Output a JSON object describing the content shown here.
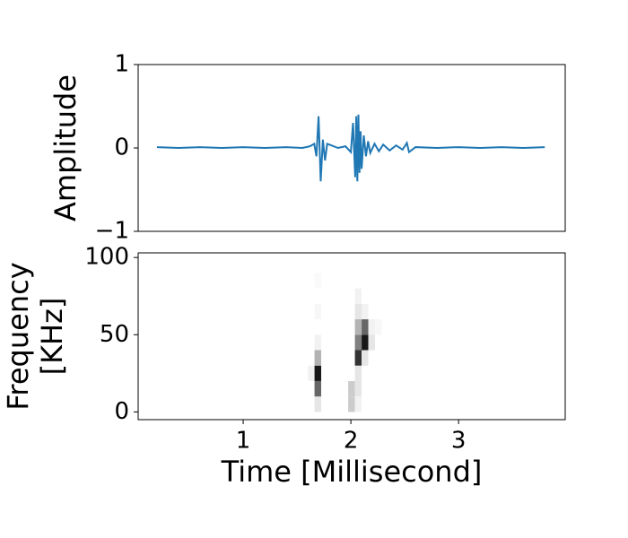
{
  "chart_data": [
    {
      "type": "line",
      "ylabel": "Amplitude",
      "color": "#1f77b4",
      "xlim": [
        0.025,
        3.99
      ],
      "ylim": [
        -1,
        1
      ],
      "yticks": [
        {
          "value": -1,
          "label": "−1"
        },
        0,
        1
      ],
      "x": [
        0.2,
        0.4,
        0.6,
        0.8,
        1.0,
        1.2,
        1.4,
        1.55,
        1.62,
        1.66,
        1.68,
        1.7,
        1.72,
        1.74,
        1.76,
        1.78,
        1.82,
        1.88,
        1.95,
        2.0,
        2.02,
        2.04,
        2.05,
        2.06,
        2.07,
        2.08,
        2.09,
        2.1,
        2.12,
        2.14,
        2.16,
        2.18,
        2.22,
        2.26,
        2.3,
        2.36,
        2.42,
        2.48,
        2.52,
        2.54,
        2.6,
        2.8,
        3.0,
        3.2,
        3.4,
        3.6,
        3.8
      ],
      "values": [
        0.01,
        0.0,
        0.01,
        0.0,
        0.01,
        0.0,
        0.01,
        0.0,
        0.02,
        0.05,
        -0.1,
        0.38,
        -0.4,
        0.1,
        -0.15,
        0.05,
        0.03,
        0.0,
        0.02,
        -0.05,
        0.3,
        -0.35,
        0.38,
        -0.4,
        0.4,
        -0.3,
        0.2,
        -0.25,
        0.15,
        -0.1,
        0.08,
        -0.06,
        0.05,
        -0.04,
        0.04,
        -0.03,
        0.03,
        -0.02,
        0.06,
        -0.05,
        0.01,
        0.0,
        0.01,
        0.0,
        0.01,
        0.0,
        0.01
      ]
    },
    {
      "type": "heatmap",
      "xlabel": "Time [Millisecond]",
      "ylabel": [
        "Frequency",
        "[KHz]"
      ],
      "colormap": "Greys",
      "xlim": [
        0.025,
        3.99
      ],
      "ylim": [
        -5,
        103
      ],
      "xticks": [
        1,
        2,
        3
      ],
      "yticks": [
        0,
        50,
        100
      ],
      "x_bins": [
        1.6,
        1.6625,
        1.725,
        1.7875,
        1.85,
        1.9125,
        1.975,
        2.0375,
        2.1,
        2.1625,
        2.225,
        2.2875,
        2.35,
        2.4125,
        2.475,
        2.5375,
        2.6
      ],
      "y_bins": [
        0,
        10,
        20,
        30,
        40,
        50,
        60,
        70,
        80,
        90,
        100
      ],
      "z": [
        [
          0,
          0.1,
          0,
          0,
          0,
          0,
          0.2,
          0.05,
          0,
          0,
          0,
          0,
          0,
          0,
          0,
          0
        ],
        [
          0,
          0.6,
          0,
          0,
          0,
          0,
          0.2,
          0.1,
          0,
          0,
          0,
          0,
          0,
          0,
          0,
          0
        ],
        [
          0.05,
          0.9,
          0,
          0,
          0,
          0,
          0,
          0.1,
          0,
          0,
          0,
          0,
          0,
          0,
          0,
          0
        ],
        [
          0,
          0.3,
          0,
          0,
          0,
          0,
          0,
          0.8,
          0.1,
          0,
          0,
          0,
          0,
          0,
          0,
          0
        ],
        [
          0,
          0.05,
          0,
          0,
          0,
          0,
          0,
          0.5,
          0.9,
          0.1,
          0,
          0,
          0,
          0,
          0,
          0
        ],
        [
          0,
          0,
          0,
          0,
          0,
          0,
          0,
          0.3,
          0.6,
          0.05,
          0.03,
          0,
          0,
          0,
          0,
          0
        ],
        [
          0,
          0.03,
          0,
          0,
          0,
          0,
          0,
          0.1,
          0.05,
          0,
          0,
          0,
          0,
          0,
          0,
          0
        ],
        [
          0,
          0,
          0,
          0,
          0,
          0,
          0,
          0.05,
          0,
          0,
          0,
          0,
          0,
          0,
          0,
          0
        ],
        [
          0,
          0.02,
          0,
          0,
          0,
          0,
          0,
          0,
          0,
          0,
          0,
          0,
          0,
          0,
          0,
          0
        ],
        [
          0,
          0,
          0,
          0,
          0,
          0,
          0,
          0,
          0,
          0,
          0,
          0,
          0,
          0,
          0,
          0
        ]
      ]
    }
  ]
}
